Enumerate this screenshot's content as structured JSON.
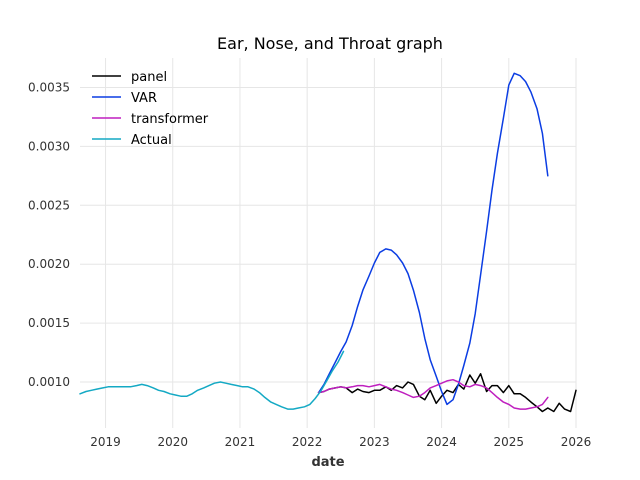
{
  "chart_data": {
    "type": "line",
    "title": "Ear, Nose, and Throat graph",
    "xlabel": "date",
    "ylabel": "",
    "xlim": [
      2018.62,
      2026.0
    ],
    "ylim": [
      0.00061,
      0.00375
    ],
    "grid": true,
    "legend_position": "top-left",
    "x_ticks": [
      2019,
      2020,
      2021,
      2022,
      2023,
      2024,
      2025,
      2026
    ],
    "x_tick_labels": [
      "2019",
      "2020",
      "2021",
      "2022",
      "2023",
      "2024",
      "2025",
      "2026"
    ],
    "y_ticks": [
      0.001,
      0.0015,
      0.002,
      0.0025,
      0.003,
      0.0035
    ],
    "y_tick_labels": [
      "0.0010",
      "0.0015",
      "0.0020",
      "0.0025",
      "0.0030",
      "0.0035"
    ],
    "series": [
      {
        "name": "panel",
        "color": "#000000",
        "x": [
          2022.17,
          2022.25,
          2022.33,
          2022.42,
          2022.5,
          2022.58,
          2022.67,
          2022.75,
          2022.83,
          2022.92,
          2023.0,
          2023.08,
          2023.17,
          2023.25,
          2023.33,
          2023.42,
          2023.5,
          2023.58,
          2023.67,
          2023.75,
          2023.83,
          2023.92,
          2024.0,
          2024.08,
          2024.17,
          2024.25,
          2024.33,
          2024.42,
          2024.5,
          2024.58,
          2024.67,
          2024.75,
          2024.83,
          2024.92,
          2025.0,
          2025.08,
          2025.17,
          2025.25,
          2025.33,
          2025.42,
          2025.5,
          2025.58,
          2025.67,
          2025.75,
          2025.83,
          2025.92,
          2026.0
        ],
        "values": [
          0.00091,
          0.00092,
          0.00094,
          0.00095,
          0.00096,
          0.00095,
          0.00091,
          0.00094,
          0.00092,
          0.00091,
          0.00093,
          0.00093,
          0.00096,
          0.00093,
          0.00097,
          0.00095,
          0.001,
          0.00098,
          0.00088,
          0.00085,
          0.00093,
          0.00082,
          0.00088,
          0.00093,
          0.00091,
          0.00098,
          0.00094,
          0.00106,
          0.00099,
          0.00107,
          0.00092,
          0.00097,
          0.00097,
          0.00091,
          0.00097,
          0.0009,
          0.0009,
          0.00087,
          0.00083,
          0.00079,
          0.00075,
          0.00078,
          0.00075,
          0.00082,
          0.00077,
          0.00075,
          0.00093
        ]
      },
      {
        "name": "VAR",
        "color": "#0b3de3",
        "x": [
          2022.17,
          2022.25,
          2022.33,
          2022.42,
          2022.5,
          2022.58,
          2022.67,
          2022.75,
          2022.83,
          2022.92,
          2023.0,
          2023.08,
          2023.17,
          2023.25,
          2023.33,
          2023.42,
          2023.5,
          2023.58,
          2023.67,
          2023.75,
          2023.83,
          2023.92,
          2024.0,
          2024.08,
          2024.17,
          2024.25,
          2024.33,
          2024.42,
          2024.5,
          2024.58,
          2024.67,
          2024.75,
          2024.83,
          2024.92,
          2025.0,
          2025.08,
          2025.17,
          2025.25,
          2025.33,
          2025.42,
          2025.5,
          2025.58
        ],
        "values": [
          0.00091,
          0.00098,
          0.00107,
          0.00117,
          0.00126,
          0.00134,
          0.00148,
          0.00164,
          0.00178,
          0.0019,
          0.00201,
          0.0021,
          0.00213,
          0.00212,
          0.00208,
          0.00201,
          0.00192,
          0.00178,
          0.00159,
          0.00137,
          0.00119,
          0.00105,
          0.00092,
          0.00081,
          0.00085,
          0.00098,
          0.00114,
          0.00133,
          0.00158,
          0.00191,
          0.00228,
          0.00263,
          0.00294,
          0.00324,
          0.00352,
          0.00362,
          0.0036,
          0.00355,
          0.00346,
          0.00332,
          0.00311,
          0.00275
        ]
      },
      {
        "name": "transformer",
        "color": "#bf1fbf",
        "x": [
          2022.17,
          2022.25,
          2022.33,
          2022.42,
          2022.5,
          2022.58,
          2022.67,
          2022.75,
          2022.83,
          2022.92,
          2023.0,
          2023.08,
          2023.17,
          2023.25,
          2023.33,
          2023.42,
          2023.5,
          2023.58,
          2023.67,
          2023.75,
          2023.83,
          2023.92,
          2024.0,
          2024.08,
          2024.17,
          2024.25,
          2024.33,
          2024.42,
          2024.5,
          2024.58,
          2024.67,
          2024.75,
          2024.83,
          2024.92,
          2025.0,
          2025.08,
          2025.17,
          2025.25,
          2025.33,
          2025.42,
          2025.5,
          2025.58
        ],
        "values": [
          0.00091,
          0.00092,
          0.00094,
          0.00095,
          0.00096,
          0.00095,
          0.00096,
          0.00097,
          0.00097,
          0.00096,
          0.00097,
          0.00098,
          0.00096,
          0.00094,
          0.00093,
          0.00091,
          0.00089,
          0.00087,
          0.00088,
          0.00091,
          0.00095,
          0.00097,
          0.00099,
          0.00101,
          0.00102,
          0.001,
          0.00097,
          0.00096,
          0.00098,
          0.00097,
          0.00095,
          0.00091,
          0.00087,
          0.00083,
          0.00081,
          0.00078,
          0.00077,
          0.00077,
          0.00078,
          0.00079,
          0.00081,
          0.00087
        ]
      },
      {
        "name": "Actual",
        "color": "#14a9c4",
        "x": [
          2018.62,
          2018.71,
          2018.79,
          2018.87,
          2018.96,
          2019.04,
          2019.12,
          2019.21,
          2019.29,
          2019.37,
          2019.46,
          2019.54,
          2019.62,
          2019.71,
          2019.79,
          2019.87,
          2019.96,
          2020.04,
          2020.12,
          2020.21,
          2020.29,
          2020.37,
          2020.46,
          2020.54,
          2020.62,
          2020.71,
          2020.79,
          2020.87,
          2020.96,
          2021.04,
          2021.12,
          2021.21,
          2021.29,
          2021.37,
          2021.46,
          2021.54,
          2021.62,
          2021.71,
          2021.79,
          2021.87,
          2021.96,
          2022.04,
          2022.12,
          2022.21,
          2022.29,
          2022.37,
          2022.46,
          2022.54
        ],
        "values": [
          0.0009,
          0.00092,
          0.00093,
          0.00094,
          0.00095,
          0.00096,
          0.00096,
          0.00096,
          0.00096,
          0.00096,
          0.00097,
          0.00098,
          0.00097,
          0.00095,
          0.00093,
          0.00092,
          0.0009,
          0.00089,
          0.00088,
          0.00088,
          0.0009,
          0.00093,
          0.00095,
          0.00097,
          0.00099,
          0.001,
          0.00099,
          0.00098,
          0.00097,
          0.00096,
          0.00096,
          0.00094,
          0.00091,
          0.00087,
          0.00083,
          0.00081,
          0.00079,
          0.00077,
          0.00077,
          0.00078,
          0.00079,
          0.00081,
          0.00086,
          0.00093,
          0.00101,
          0.00109,
          0.00117,
          0.00126
        ]
      }
    ]
  }
}
